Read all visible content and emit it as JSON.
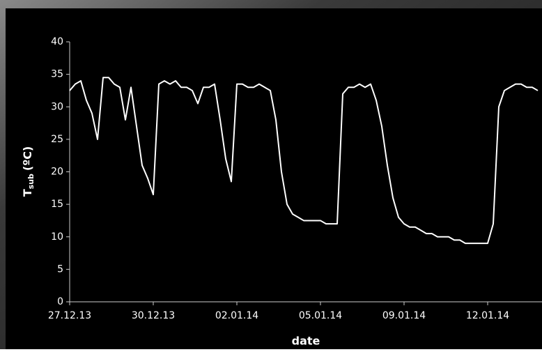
{
  "chart_data": {
    "type": "line",
    "ylabel": "T",
    "ylabel_sub": "sub",
    "ylabel_unit": "(ºC)",
    "xlabel": "date",
    "categories": [
      "27.12.13",
      null,
      null,
      null,
      null,
      null,
      null,
      null,
      null,
      null,
      null,
      null,
      null,
      null,
      null,
      "30.12.13",
      null,
      null,
      null,
      null,
      null,
      null,
      null,
      null,
      null,
      null,
      null,
      null,
      null,
      null,
      "02.01.14",
      null,
      null,
      null,
      null,
      null,
      null,
      null,
      null,
      null,
      null,
      null,
      null,
      null,
      null,
      "05.01.14",
      null,
      null,
      null,
      null,
      null,
      null,
      null,
      null,
      null,
      null,
      null,
      null,
      null,
      null,
      "09.01.14",
      null,
      null,
      null,
      null,
      null,
      null,
      null,
      null,
      null,
      null,
      null,
      null,
      null,
      null,
      "12.01.14",
      null,
      null,
      null,
      null,
      null,
      null,
      null,
      null,
      null
    ],
    "values": [
      32.5,
      33.5,
      34,
      31,
      29,
      25,
      34.5,
      34.5,
      33.5,
      33,
      28,
      33,
      27,
      21,
      19,
      16.5,
      33.5,
      34,
      33.5,
      34,
      33,
      33,
      32.5,
      30.5,
      33,
      33,
      33.5,
      28,
      22,
      18.5,
      33.5,
      33.5,
      33,
      33,
      33.5,
      33,
      32.5,
      28,
      20,
      15,
      13.5,
      13,
      12.5,
      12.5,
      12.5,
      12.5,
      12,
      12,
      12,
      32,
      33,
      33,
      33.5,
      33,
      33.5,
      31,
      27,
      21,
      16,
      13,
      12,
      11.5,
      11.5,
      11,
      10.5,
      10.5,
      10,
      10,
      10,
      9.5,
      9.5,
      9,
      9,
      9,
      9,
      9,
      12,
      30,
      32.5,
      33,
      33.5,
      33.5,
      33,
      33,
      32.5
    ],
    "color": "#ffffff",
    "ylim": [
      0,
      40
    ],
    "yticks": [
      0,
      5,
      10,
      15,
      20,
      25,
      30,
      35,
      40
    ]
  }
}
